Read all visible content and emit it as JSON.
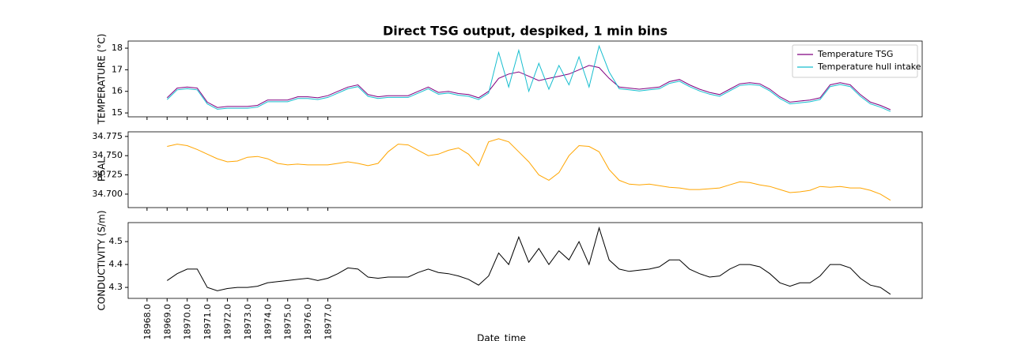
{
  "chart_data": [
    {
      "type": "line",
      "title": "Direct TSG output, despiked, 1 min bins",
      "ylabel": "TEMPERATURE (°C)",
      "legend": "upper right",
      "x": [
        18969,
        18969.5,
        18970,
        18970.5,
        18971,
        18971.5,
        18972,
        18972.5,
        18973,
        18973.5,
        18974,
        18974.5,
        18975,
        18975.5,
        18976,
        18976.5,
        18977,
        18977.5,
        18978,
        18978.5,
        18979,
        18979.5,
        18980,
        18980.5,
        18981,
        18981.5,
        18982,
        18982.5,
        18983,
        18983.5,
        18984,
        18984.5,
        18985,
        18985.5,
        18986,
        18986.5,
        18987,
        18987.5,
        18988,
        18988.5,
        18989,
        18989.5,
        18990,
        18990.5,
        18991,
        18991.5,
        18992,
        18992.5,
        18993,
        18993.5,
        18994,
        18994.5,
        18995,
        18995.5,
        18996,
        18996.5,
        18997,
        18997.5,
        18998,
        18998.5,
        18999,
        18999.5,
        19000,
        19000.5,
        19001,
        19001.5,
        19002,
        19002.5,
        19003,
        19003.5,
        19004,
        19004.5,
        19005
      ],
      "series": [
        {
          "name": "Temperature TSG",
          "color": "#800080",
          "values": [
            15.7,
            16.15,
            16.2,
            16.15,
            15.5,
            15.25,
            15.3,
            15.3,
            15.3,
            15.35,
            15.6,
            15.6,
            15.6,
            15.75,
            15.75,
            15.7,
            15.8,
            16.0,
            16.2,
            16.3,
            15.85,
            15.75,
            15.8,
            15.8,
            15.8,
            16.0,
            16.2,
            15.95,
            16.0,
            15.9,
            15.85,
            15.7,
            16.0,
            16.6,
            16.8,
            16.9,
            16.7,
            16.5,
            16.6,
            16.7,
            16.8,
            17.0,
            17.2,
            17.1,
            16.6,
            16.2,
            16.15,
            16.1,
            16.15,
            16.2,
            16.45,
            16.55,
            16.3,
            16.1,
            15.95,
            15.85,
            16.1,
            16.35,
            16.4,
            16.35,
            16.1,
            15.75,
            15.5,
            15.55,
            15.6,
            15.7,
            16.3,
            16.4,
            16.3,
            15.85,
            15.5,
            15.35,
            15.15
          ]
        },
        {
          "name": "Temperature hull intake",
          "color": "#17becf",
          "values": [
            15.62,
            16.07,
            16.12,
            16.07,
            15.42,
            15.17,
            15.22,
            15.22,
            15.22,
            15.27,
            15.52,
            15.52,
            15.52,
            15.67,
            15.67,
            15.62,
            15.72,
            15.92,
            16.12,
            16.22,
            15.77,
            15.67,
            15.72,
            15.72,
            15.72,
            15.92,
            16.12,
            15.87,
            15.92,
            15.82,
            15.77,
            15.62,
            15.92,
            17.8,
            16.2,
            17.9,
            16.0,
            17.3,
            16.1,
            17.2,
            16.3,
            17.6,
            16.2,
            18.1,
            16.9,
            16.12,
            16.07,
            16.02,
            16.07,
            16.12,
            16.37,
            16.47,
            16.22,
            16.02,
            15.87,
            15.77,
            16.02,
            16.27,
            16.32,
            16.27,
            16.02,
            15.67,
            15.42,
            15.47,
            15.52,
            15.62,
            16.22,
            16.32,
            16.22,
            15.77,
            15.42,
            15.27,
            15.07
          ]
        }
      ],
      "xlim": [
        18967.06,
        19006.58
      ],
      "ylim": [
        14.82,
        18.33
      ],
      "yticks": [
        15,
        16,
        17,
        18
      ]
    },
    {
      "type": "line",
      "ylabel": "PSAL",
      "color": "#ffa500",
      "x": [
        18969,
        18969.5,
        18970,
        18970.5,
        18971,
        18971.5,
        18972,
        18972.5,
        18973,
        18973.5,
        18974,
        18974.5,
        18975,
        18975.5,
        18976,
        18976.5,
        18977,
        18977.5,
        18978,
        18978.5,
        18979,
        18979.5,
        18980,
        18980.5,
        18981,
        18981.5,
        18982,
        18982.5,
        18983,
        18983.5,
        18984,
        18984.5,
        18985,
        18985.5,
        18986,
        18986.5,
        18987,
        18987.5,
        18988,
        18988.5,
        18989,
        18989.5,
        18990,
        18990.5,
        18991,
        18991.5,
        18992,
        18992.5,
        18993,
        18993.5,
        18994,
        18994.5,
        18995,
        18995.5,
        18996,
        18996.5,
        18997,
        18997.5,
        18998,
        18998.5,
        18999,
        18999.5,
        19000,
        19000.5,
        19001,
        19001.5,
        19002,
        19002.5,
        19003,
        19003.5,
        19004,
        19004.5,
        19005
      ],
      "values": [
        34.762,
        34.765,
        34.763,
        34.758,
        34.752,
        34.746,
        34.742,
        34.743,
        34.748,
        34.749,
        34.746,
        34.74,
        34.738,
        34.739,
        34.738,
        34.738,
        34.738,
        34.74,
        34.742,
        34.74,
        34.737,
        34.74,
        34.755,
        34.765,
        34.764,
        34.757,
        34.75,
        34.752,
        34.757,
        34.76,
        34.752,
        34.737,
        34.768,
        34.772,
        34.768,
        34.755,
        34.742,
        34.725,
        34.718,
        34.728,
        34.75,
        34.763,
        34.762,
        34.755,
        34.732,
        34.718,
        34.713,
        34.712,
        34.713,
        34.711,
        34.709,
        34.708,
        34.706,
        34.706,
        34.707,
        34.708,
        34.712,
        34.716,
        34.715,
        34.712,
        34.71,
        34.706,
        34.702,
        34.703,
        34.705,
        34.71,
        34.709,
        34.71,
        34.708,
        34.708,
        34.705,
        34.7,
        34.692
      ],
      "xlim": [
        18967.06,
        19006.58
      ],
      "ylim": [
        34.6825,
        34.781
      ],
      "yticks": [
        {
          "value": 34.7,
          "label": "34.700"
        },
        34.725,
        {
          "value": 34.75,
          "label": "34.750"
        },
        34.775
      ]
    },
    {
      "type": "line",
      "ylabel": "CONDUCTIVITY (S/m)",
      "xlabel": "Date_time",
      "color": "#000000",
      "x": [
        18969,
        18969.5,
        18970,
        18970.5,
        18971,
        18971.5,
        18972,
        18972.5,
        18973,
        18973.5,
        18974,
        18974.5,
        18975,
        18975.5,
        18976,
        18976.5,
        18977,
        18977.5,
        18978,
        18978.5,
        18979,
        18979.5,
        18980,
        18980.5,
        18981,
        18981.5,
        18982,
        18982.5,
        18983,
        18983.5,
        18984,
        18984.5,
        18985,
        18985.5,
        18986,
        18986.5,
        18987,
        18987.5,
        18988,
        18988.5,
        18989,
        18989.5,
        18990,
        18990.5,
        18991,
        18991.5,
        18992,
        18992.5,
        18993,
        18993.5,
        18994,
        18994.5,
        18995,
        18995.5,
        18996,
        18996.5,
        18997,
        18997.5,
        18998,
        18998.5,
        18999,
        18999.5,
        19000,
        19000.5,
        19001,
        19001.5,
        19002,
        19002.5,
        19003,
        19003.5,
        19004,
        19004.5,
        19005
      ],
      "values": [
        4.33,
        4.36,
        4.38,
        4.38,
        4.3,
        4.285,
        4.295,
        4.3,
        4.3,
        4.305,
        4.32,
        4.325,
        4.33,
        4.335,
        4.34,
        4.33,
        4.34,
        4.36,
        4.385,
        4.38,
        4.345,
        4.34,
        4.345,
        4.345,
        4.345,
        4.365,
        4.38,
        4.365,
        4.36,
        4.35,
        4.335,
        4.31,
        4.35,
        4.45,
        4.4,
        4.52,
        4.41,
        4.47,
        4.4,
        4.46,
        4.42,
        4.5,
        4.4,
        4.56,
        4.42,
        4.38,
        4.37,
        4.375,
        4.38,
        4.39,
        4.42,
        4.42,
        4.38,
        4.36,
        4.345,
        4.35,
        4.38,
        4.4,
        4.4,
        4.39,
        4.36,
        4.32,
        4.305,
        4.32,
        4.32,
        4.35,
        4.4,
        4.4,
        4.385,
        4.34,
        4.31,
        4.3,
        4.27
      ],
      "xlim": [
        18967.06,
        19006.58
      ],
      "ylim": [
        4.252,
        4.583
      ],
      "yticks": [
        4.3,
        4.4,
        4.5
      ],
      "xticks": [
        {
          "value": 18968,
          "label": "18968.0"
        },
        {
          "value": 18969,
          "label": "18969.0"
        },
        {
          "value": 18970,
          "label": "18970.0"
        },
        {
          "value": 18971,
          "label": "18971.0"
        },
        {
          "value": 18972,
          "label": "18972.0"
        },
        {
          "value": 18973,
          "label": "18973.0"
        },
        {
          "value": 18974,
          "label": "18974.0"
        },
        {
          "value": 18975,
          "label": "18975.0"
        },
        {
          "value": 18976,
          "label": "18976.0"
        },
        {
          "value": 18977,
          "label": "18977.0"
        }
      ]
    }
  ]
}
